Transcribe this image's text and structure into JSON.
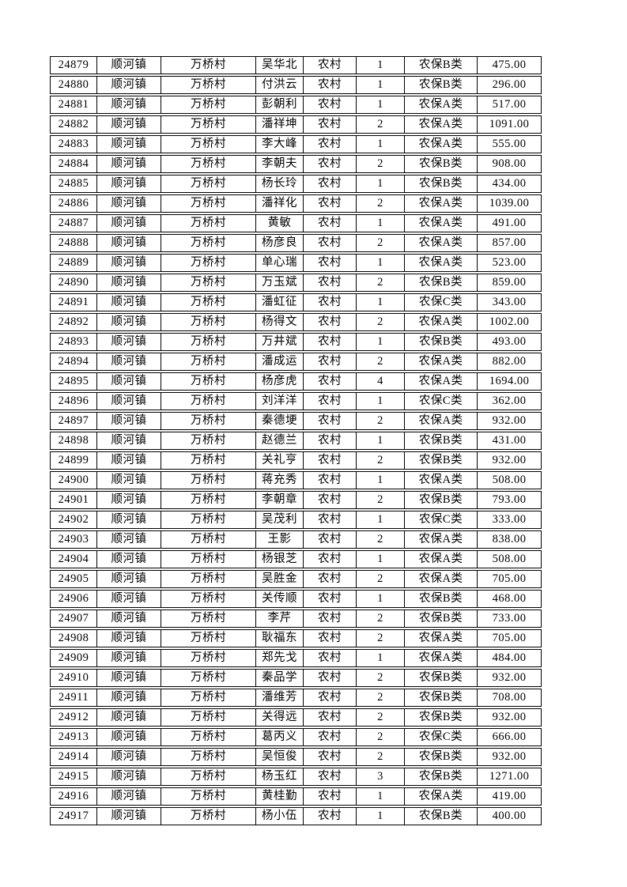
{
  "page": {
    "background_color": "#ffffff",
    "border_color": "#000000",
    "text_color": "#000000"
  },
  "table": {
    "column_keys": [
      "id",
      "town",
      "village",
      "name",
      "residence",
      "count",
      "category",
      "amount"
    ],
    "rows": [
      [
        "24879",
        "顺河镇",
        "万桥村",
        "吴华北",
        "农村",
        "1",
        "农保B类",
        "475.00"
      ],
      [
        "24880",
        "顺河镇",
        "万桥村",
        "付洪云",
        "农村",
        "1",
        "农保B类",
        "296.00"
      ],
      [
        "24881",
        "顺河镇",
        "万桥村",
        "彭朝利",
        "农村",
        "1",
        "农保A类",
        "517.00"
      ],
      [
        "24882",
        "顺河镇",
        "万桥村",
        "潘祥坤",
        "农村",
        "2",
        "农保A类",
        "1091.00"
      ],
      [
        "24883",
        "顺河镇",
        "万桥村",
        "李大峰",
        "农村",
        "1",
        "农保A类",
        "555.00"
      ],
      [
        "24884",
        "顺河镇",
        "万桥村",
        "李朝夫",
        "农村",
        "2",
        "农保B类",
        "908.00"
      ],
      [
        "24885",
        "顺河镇",
        "万桥村",
        "杨长玲",
        "农村",
        "1",
        "农保B类",
        "434.00"
      ],
      [
        "24886",
        "顺河镇",
        "万桥村",
        "潘祥化",
        "农村",
        "2",
        "农保A类",
        "1039.00"
      ],
      [
        "24887",
        "顺河镇",
        "万桥村",
        "黄敏",
        "农村",
        "1",
        "农保A类",
        "491.00"
      ],
      [
        "24888",
        "顺河镇",
        "万桥村",
        "杨彦良",
        "农村",
        "2",
        "农保A类",
        "857.00"
      ],
      [
        "24889",
        "顺河镇",
        "万桥村",
        "单心瑞",
        "农村",
        "1",
        "农保A类",
        "523.00"
      ],
      [
        "24890",
        "顺河镇",
        "万桥村",
        "万玉斌",
        "农村",
        "2",
        "农保B类",
        "859.00"
      ],
      [
        "24891",
        "顺河镇",
        "万桥村",
        "潘虹征",
        "农村",
        "1",
        "农保C类",
        "343.00"
      ],
      [
        "24892",
        "顺河镇",
        "万桥村",
        "杨得文",
        "农村",
        "2",
        "农保A类",
        "1002.00"
      ],
      [
        "24893",
        "顺河镇",
        "万桥村",
        "万井斌",
        "农村",
        "1",
        "农保B类",
        "493.00"
      ],
      [
        "24894",
        "顺河镇",
        "万桥村",
        "潘成运",
        "农村",
        "2",
        "农保A类",
        "882.00"
      ],
      [
        "24895",
        "顺河镇",
        "万桥村",
        "杨彦虎",
        "农村",
        "4",
        "农保A类",
        "1694.00"
      ],
      [
        "24896",
        "顺河镇",
        "万桥村",
        "刘洋洋",
        "农村",
        "1",
        "农保C类",
        "362.00"
      ],
      [
        "24897",
        "顺河镇",
        "万桥村",
        "秦德埂",
        "农村",
        "2",
        "农保A类",
        "932.00"
      ],
      [
        "24898",
        "顺河镇",
        "万桥村",
        "赵德兰",
        "农村",
        "1",
        "农保B类",
        "431.00"
      ],
      [
        "24899",
        "顺河镇",
        "万桥村",
        "关礼亨",
        "农村",
        "2",
        "农保B类",
        "932.00"
      ],
      [
        "24900",
        "顺河镇",
        "万桥村",
        "蒋充秀",
        "农村",
        "1",
        "农保A类",
        "508.00"
      ],
      [
        "24901",
        "顺河镇",
        "万桥村",
        "李朝章",
        "农村",
        "2",
        "农保B类",
        "793.00"
      ],
      [
        "24902",
        "顺河镇",
        "万桥村",
        "吴茂利",
        "农村",
        "1",
        "农保C类",
        "333.00"
      ],
      [
        "24903",
        "顺河镇",
        "万桥村",
        "王影",
        "农村",
        "2",
        "农保A类",
        "838.00"
      ],
      [
        "24904",
        "顺河镇",
        "万桥村",
        "杨银芝",
        "农村",
        "1",
        "农保A类",
        "508.00"
      ],
      [
        "24905",
        "顺河镇",
        "万桥村",
        "吴胜金",
        "农村",
        "2",
        "农保A类",
        "705.00"
      ],
      [
        "24906",
        "顺河镇",
        "万桥村",
        "关传顺",
        "农村",
        "1",
        "农保B类",
        "468.00"
      ],
      [
        "24907",
        "顺河镇",
        "万桥村",
        "李芹",
        "农村",
        "2",
        "农保B类",
        "733.00"
      ],
      [
        "24908",
        "顺河镇",
        "万桥村",
        "耿福东",
        "农村",
        "2",
        "农保A类",
        "705.00"
      ],
      [
        "24909",
        "顺河镇",
        "万桥村",
        "郑先戈",
        "农村",
        "1",
        "农保A类",
        "484.00"
      ],
      [
        "24910",
        "顺河镇",
        "万桥村",
        "秦品学",
        "农村",
        "2",
        "农保B类",
        "932.00"
      ],
      [
        "24911",
        "顺河镇",
        "万桥村",
        "潘维芳",
        "农村",
        "2",
        "农保B类",
        "708.00"
      ],
      [
        "24912",
        "顺河镇",
        "万桥村",
        "关得远",
        "农村",
        "2",
        "农保B类",
        "932.00"
      ],
      [
        "24913",
        "顺河镇",
        "万桥村",
        "葛丙义",
        "农村",
        "2",
        "农保C类",
        "666.00"
      ],
      [
        "24914",
        "顺河镇",
        "万桥村",
        "吴恒俊",
        "农村",
        "2",
        "农保B类",
        "932.00"
      ],
      [
        "24915",
        "顺河镇",
        "万桥村",
        "杨玉红",
        "农村",
        "3",
        "农保B类",
        "1271.00"
      ],
      [
        "24916",
        "顺河镇",
        "万桥村",
        "黄桂勤",
        "农村",
        "1",
        "农保A类",
        "419.00"
      ],
      [
        "24917",
        "顺河镇",
        "万桥村",
        "杨小伍",
        "农村",
        "1",
        "农保B类",
        "400.00"
      ]
    ]
  }
}
